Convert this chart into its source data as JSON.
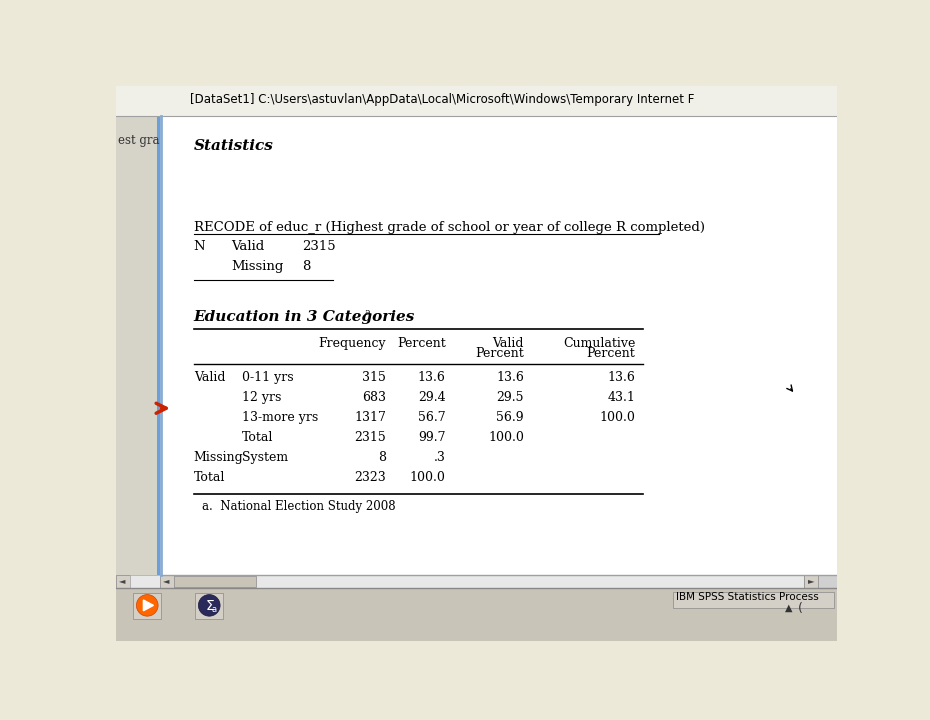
{
  "bg_color": "#ece9d8",
  "white_bg": "#ffffff",
  "title_bar_text": "[DataSet1] C:\\Users\\astuvlan\\AppData\\Local\\Microsoft\\Windows\\Temporary Internet F",
  "sidebar_text": "est gra",
  "statistics_label": "Statistics",
  "recode_label": "RECODE of educ_r (Highest grade of school or year of college R completed)",
  "n_valid_label": "N",
  "valid_label": "Valid",
  "valid_value": "2315",
  "missing_label": "Missing",
  "missing_value": "8",
  "table_title": "Education in 3 Categories",
  "table_title_superscript": "a",
  "rows": [
    [
      "Valid",
      "0-11 yrs",
      "315",
      "13.6",
      "13.6",
      "13.6"
    ],
    [
      "",
      "12 yrs",
      "683",
      "29.4",
      "29.5",
      "43.1"
    ],
    [
      "",
      "13-more yrs",
      "1317",
      "56.7",
      "56.9",
      "100.0"
    ],
    [
      "",
      "Total",
      "2315",
      "99.7",
      "100.0",
      ""
    ],
    [
      "Missing",
      "System",
      "8",
      ".3",
      "",
      ""
    ],
    [
      "Total",
      "",
      "2323",
      "100.0",
      "",
      ""
    ]
  ],
  "footnote": "a.  National Election Study 2008",
  "arrow_color": "#cc2200",
  "taskbar_text": "IBM SPSS Statistics Process",
  "left_panel_bg": "#d6d3c9",
  "scrollbar_blue": "#6a9fd8",
  "main_bg": "#ffffff",
  "title_bg": "#f0efe8",
  "taskbar_bg": "#c8c5b8"
}
